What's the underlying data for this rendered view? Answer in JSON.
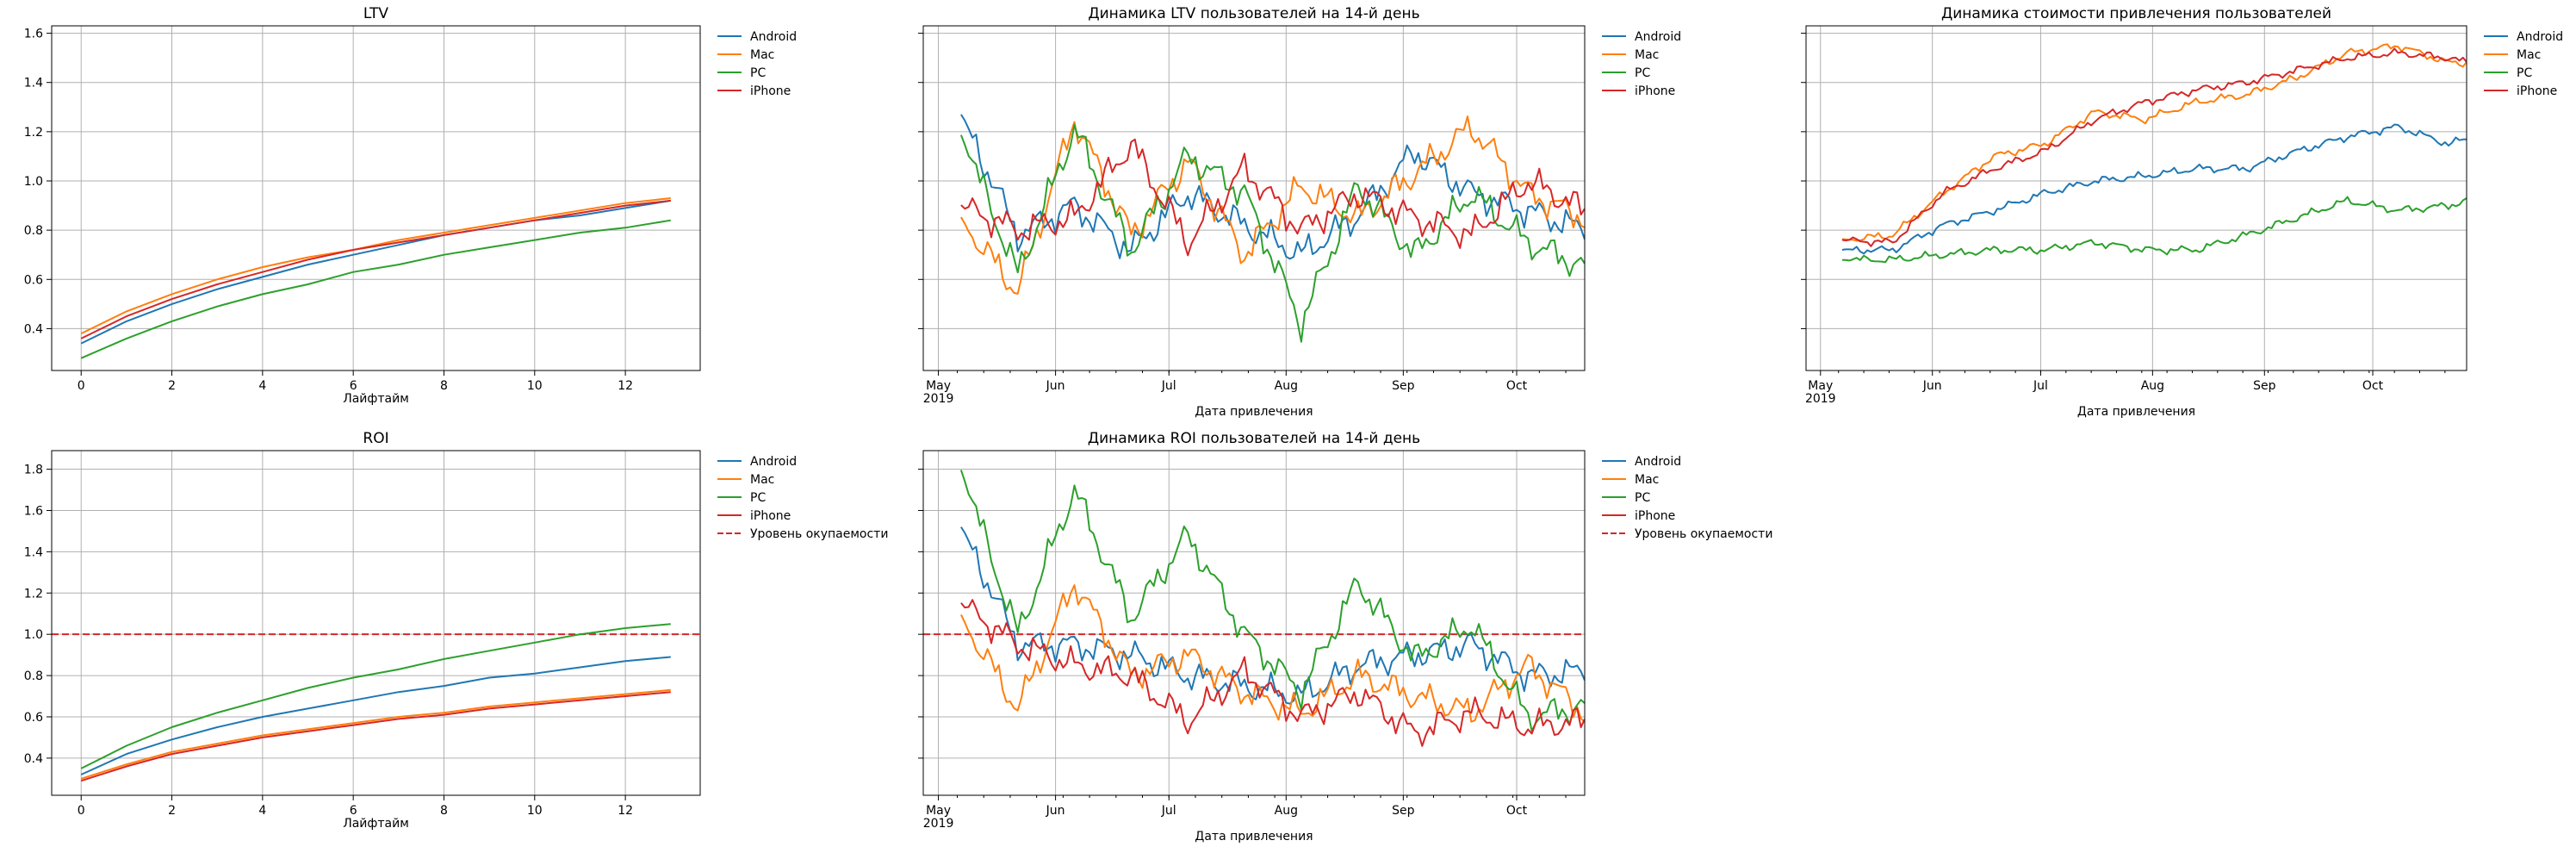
{
  "chart_data": [
    {
      "id": "ltv",
      "type": "line",
      "title": "LTV",
      "xlabel": "Лайфтайм",
      "ylabel": "",
      "xlim": [
        -0.65,
        13.65
      ],
      "ylim": [
        0.23,
        1.63
      ],
      "xticks": [
        0,
        2,
        4,
        6,
        8,
        10,
        12
      ],
      "yticks": [
        0.4,
        0.6,
        0.8,
        1.0,
        1.2,
        1.4,
        1.6
      ],
      "grid": true,
      "legend": "outside-right",
      "x": [
        0,
        1,
        2,
        3,
        4,
        5,
        6,
        7,
        8,
        9,
        10,
        11,
        12,
        13
      ],
      "series": [
        {
          "name": "Android",
          "color": "#1f77b4",
          "values": [
            0.34,
            0.43,
            0.5,
            0.56,
            0.61,
            0.66,
            0.7,
            0.74,
            0.78,
            0.81,
            0.84,
            0.86,
            0.89,
            0.92
          ]
        },
        {
          "name": "Mac",
          "color": "#ff7f0e",
          "values": [
            0.38,
            0.47,
            0.54,
            0.6,
            0.65,
            0.69,
            0.72,
            0.76,
            0.79,
            0.82,
            0.85,
            0.88,
            0.91,
            0.93
          ]
        },
        {
          "name": "PC",
          "color": "#2ca02c",
          "values": [
            0.28,
            0.36,
            0.43,
            0.49,
            0.54,
            0.58,
            0.63,
            0.66,
            0.7,
            0.73,
            0.76,
            0.79,
            0.81,
            0.84
          ]
        },
        {
          "name": "iPhone",
          "color": "#d62728",
          "values": [
            0.36,
            0.45,
            0.52,
            0.58,
            0.63,
            0.68,
            0.72,
            0.75,
            0.78,
            0.81,
            0.84,
            0.87,
            0.9,
            0.92
          ]
        }
      ]
    },
    {
      "id": "ltv_dyn",
      "type": "line",
      "title": "Динамика LTV пользователей на 14-й день",
      "xlabel": "Дата привлечения",
      "ylabel": "",
      "x_type": "date",
      "x_start": "2019-05-01",
      "x_end": "2019-10-19",
      "ylim": [
        0.23,
        1.63
      ],
      "xtick_labels": [
        "May\n2019",
        "Jun",
        "Jul",
        "Aug",
        "Sep",
        "Oct"
      ],
      "grid": true,
      "legend": "outside-right",
      "x_sample_dates": [
        "2019-05-07",
        "2019-05-22",
        "2019-06-06",
        "2019-06-21",
        "2019-07-06",
        "2019-07-21",
        "2019-08-05",
        "2019-08-20",
        "2019-09-04",
        "2019-09-19",
        "2019-10-04",
        "2019-10-19"
      ],
      "series": [
        {
          "name": "Android",
          "color": "#1f77b4",
          "values": [
            1.27,
            0.78,
            0.9,
            0.72,
            0.95,
            0.82,
            0.7,
            0.86,
            1.12,
            0.95,
            0.88,
            0.8
          ]
        },
        {
          "name": "Mac",
          "color": "#ff7f0e",
          "values": [
            0.84,
            0.55,
            1.25,
            0.78,
            1.08,
            0.7,
            0.98,
            0.85,
            1.03,
            1.22,
            0.95,
            0.85
          ]
        },
        {
          "name": "PC",
          "color": "#2ca02c",
          "values": [
            1.19,
            0.62,
            1.21,
            0.72,
            1.1,
            0.95,
            0.42,
            0.98,
            0.7,
            0.95,
            0.75,
            0.65
          ]
        },
        {
          "name": "iPhone",
          "color": "#d62728",
          "values": [
            0.9,
            0.8,
            0.85,
            1.15,
            0.75,
            1.05,
            0.8,
            0.95,
            0.85,
            0.78,
            1.0,
            0.88
          ]
        }
      ]
    },
    {
      "id": "cac_dyn",
      "type": "line",
      "title": "Динамика стоимости привлечения пользователей",
      "xlabel": "Дата привлечения",
      "ylabel": "",
      "x_type": "date",
      "x_start": "2019-05-01",
      "x_end": "2019-10-27",
      "ylim": [
        0.23,
        1.63
      ],
      "xtick_labels": [
        "May\n2019",
        "Jun",
        "Jul",
        "Aug",
        "Sep",
        "Oct"
      ],
      "grid": true,
      "legend": "outside-right",
      "x_sample_dates": [
        "2019-05-07",
        "2019-05-21",
        "2019-06-04",
        "2019-06-18",
        "2019-07-02",
        "2019-07-16",
        "2019-07-30",
        "2019-08-13",
        "2019-08-27",
        "2019-09-10",
        "2019-09-24",
        "2019-10-08",
        "2019-10-22",
        "2019-10-27"
      ],
      "series": [
        {
          "name": "Android",
          "color": "#1f77b4",
          "values": [
            0.72,
            0.72,
            0.82,
            0.88,
            0.95,
            1.0,
            1.02,
            1.05,
            1.05,
            1.12,
            1.18,
            1.22,
            1.15,
            1.17
          ]
        },
        {
          "name": "Mac",
          "color": "#ff7f0e",
          "values": [
            0.76,
            0.78,
            0.95,
            1.1,
            1.15,
            1.28,
            1.25,
            1.32,
            1.35,
            1.42,
            1.52,
            1.55,
            1.48,
            1.48
          ]
        },
        {
          "name": "PC",
          "color": "#2ca02c",
          "values": [
            0.68,
            0.68,
            0.7,
            0.72,
            0.72,
            0.75,
            0.72,
            0.72,
            0.78,
            0.85,
            0.92,
            0.88,
            0.9,
            0.92
          ]
        },
        {
          "name": "iPhone",
          "color": "#d62728",
          "values": [
            0.76,
            0.75,
            0.95,
            1.05,
            1.12,
            1.25,
            1.32,
            1.37,
            1.4,
            1.45,
            1.5,
            1.52,
            1.5,
            1.48
          ]
        }
      ]
    },
    {
      "id": "roi",
      "type": "line",
      "title": "ROI",
      "xlabel": "Лайфтайм",
      "ylabel": "",
      "xlim": [
        -0.65,
        13.65
      ],
      "ylim": [
        0.22,
        1.89
      ],
      "xticks": [
        0,
        2,
        4,
        6,
        8,
        10,
        12
      ],
      "yticks": [
        0.4,
        0.6,
        0.8,
        1.0,
        1.2,
        1.4,
        1.6,
        1.8
      ],
      "grid": true,
      "legend": "outside-right",
      "hline": {
        "y": 1.0,
        "name": "Уровень окупаемости",
        "color": "#d62728"
      },
      "x": [
        0,
        1,
        2,
        3,
        4,
        5,
        6,
        7,
        8,
        9,
        10,
        11,
        12,
        13
      ],
      "series": [
        {
          "name": "Android",
          "color": "#1f77b4",
          "values": [
            0.32,
            0.42,
            0.49,
            0.55,
            0.6,
            0.64,
            0.68,
            0.72,
            0.75,
            0.79,
            0.81,
            0.84,
            0.87,
            0.89
          ]
        },
        {
          "name": "Mac",
          "color": "#ff7f0e",
          "values": [
            0.3,
            0.37,
            0.43,
            0.47,
            0.51,
            0.54,
            0.57,
            0.6,
            0.62,
            0.65,
            0.67,
            0.69,
            0.71,
            0.73
          ]
        },
        {
          "name": "PC",
          "color": "#2ca02c",
          "values": [
            0.35,
            0.46,
            0.55,
            0.62,
            0.68,
            0.74,
            0.79,
            0.83,
            0.88,
            0.92,
            0.96,
            1.0,
            1.03,
            1.05
          ]
        },
        {
          "name": "iPhone",
          "color": "#d62728",
          "values": [
            0.29,
            0.36,
            0.42,
            0.46,
            0.5,
            0.53,
            0.56,
            0.59,
            0.61,
            0.64,
            0.66,
            0.68,
            0.7,
            0.72
          ]
        }
      ]
    },
    {
      "id": "roi_dyn",
      "type": "line",
      "title": "Динамика ROI пользователей на 14-й день",
      "xlabel": "Дата привлечения",
      "ylabel": "",
      "x_type": "date",
      "x_start": "2019-05-01",
      "x_end": "2019-10-19",
      "ylim": [
        0.22,
        1.89
      ],
      "xtick_labels": [
        "May\n2019",
        "Jun",
        "Jul",
        "Aug",
        "Sep",
        "Oct"
      ],
      "grid": true,
      "legend": "outside-right",
      "hline": {
        "y": 1.0,
        "name": "Уровень окупаемости",
        "color": "#d62728"
      },
      "x_sample_dates": [
        "2019-05-07",
        "2019-05-22",
        "2019-06-06",
        "2019-06-21",
        "2019-07-06",
        "2019-07-21",
        "2019-08-05",
        "2019-08-20",
        "2019-09-04",
        "2019-09-19",
        "2019-10-04",
        "2019-10-19"
      ],
      "series": [
        {
          "name": "Android",
          "color": "#1f77b4",
          "values": [
            1.52,
            0.95,
            0.95,
            0.9,
            0.8,
            0.75,
            0.7,
            0.85,
            0.9,
            0.95,
            0.8,
            0.82
          ]
        },
        {
          "name": "Mac",
          "color": "#ff7f0e",
          "values": [
            1.08,
            0.64,
            1.25,
            0.8,
            0.9,
            0.72,
            0.62,
            0.8,
            0.7,
            0.62,
            0.85,
            0.62
          ]
        },
        {
          "name": "PC",
          "color": "#2ca02c",
          "values": [
            1.8,
            1.0,
            1.7,
            1.08,
            1.48,
            1.0,
            0.72,
            1.25,
            0.88,
            1.05,
            0.6,
            0.65
          ]
        },
        {
          "name": "iPhone",
          "color": "#d62728",
          "values": [
            1.15,
            0.95,
            0.85,
            0.8,
            0.58,
            0.82,
            0.6,
            0.72,
            0.52,
            0.62,
            0.55,
            0.58
          ]
        }
      ]
    }
  ]
}
